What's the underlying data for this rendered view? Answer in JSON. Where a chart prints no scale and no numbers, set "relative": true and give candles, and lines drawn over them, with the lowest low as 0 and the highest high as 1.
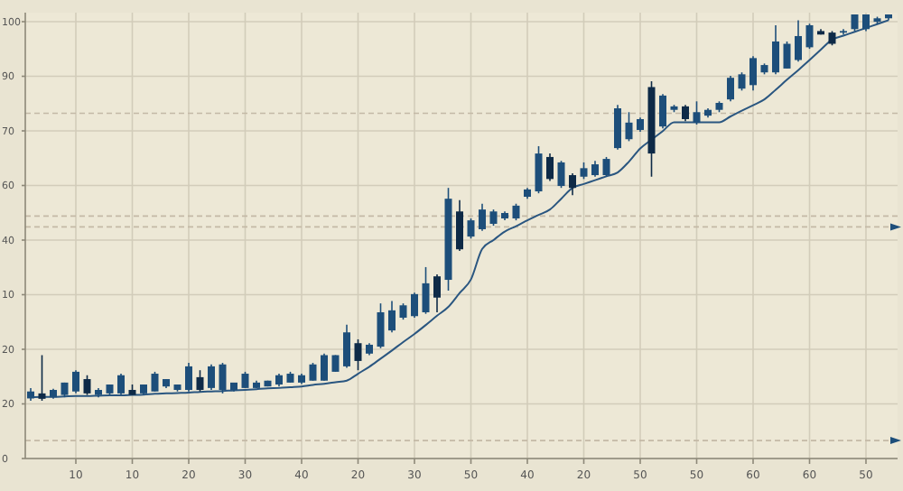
{
  "chart_data": {
    "type": "candlestick",
    "relative": true,
    "categories": [
      null,
      null,
      null,
      null,
      "10",
      null,
      null,
      null,
      null,
      "10",
      null,
      null,
      null,
      null,
      "20",
      null,
      null,
      null,
      null,
      "30",
      null,
      null,
      null,
      null,
      "40",
      null,
      null,
      null,
      null,
      "20",
      null,
      null,
      null,
      null,
      "30",
      null,
      null,
      null,
      null,
      "50",
      null,
      null,
      null,
      null,
      "40",
      null,
      null,
      null,
      null,
      "20",
      null,
      null,
      null,
      null,
      "50",
      null,
      null,
      null,
      null,
      "50",
      null,
      null,
      null,
      null,
      "60",
      null,
      null,
      null,
      null,
      "60",
      null,
      null,
      null,
      null,
      "50",
      null,
      null
    ],
    "ohlc": [
      [
        0.006,
        0.033,
        0,
        0.024
      ],
      [
        0.019,
        0.118,
        0,
        0.005
      ],
      [
        0.009,
        0.031,
        0.005,
        0.028
      ],
      [
        0.015,
        0.047,
        0.009,
        0.047
      ],
      [
        0.024,
        0.079,
        0.019,
        0.075
      ],
      [
        0.056,
        0.066,
        0.015,
        0.019
      ],
      [
        0.015,
        0.033,
        0.009,
        0.028
      ],
      [
        0.019,
        0.042,
        0.015,
        0.042
      ],
      [
        0.019,
        0.07,
        0.015,
        0.066
      ],
      [
        0.028,
        0.042,
        0.015,
        0.015
      ],
      [
        0.019,
        0.042,
        0.015,
        0.042
      ],
      [
        0.024,
        0.075,
        0.024,
        0.07
      ],
      [
        0.037,
        0.056,
        0.033,
        0.056
      ],
      [
        0.028,
        0.042,
        0.024,
        0.042
      ],
      [
        0.028,
        0.098,
        0.024,
        0.089
      ],
      [
        0.061,
        0.079,
        0.024,
        0.028
      ],
      [
        0.033,
        0.094,
        0.028,
        0.089
      ],
      [
        0.028,
        0.098,
        0.019,
        0.094
      ],
      [
        0.028,
        0.047,
        0.024,
        0.047
      ],
      [
        0.033,
        0.075,
        0.033,
        0.07
      ],
      [
        0.033,
        0.052,
        0.033,
        0.047
      ],
      [
        0.037,
        0.052,
        0.037,
        0.052
      ],
      [
        0.042,
        0.07,
        0.037,
        0.066
      ],
      [
        0.047,
        0.075,
        0.047,
        0.07
      ],
      [
        0.047,
        0.07,
        0.043,
        0.066
      ],
      [
        0.052,
        0.098,
        0.052,
        0.094
      ],
      [
        0.052,
        0.122,
        0.052,
        0.118
      ],
      [
        0.075,
        0.118,
        0.075,
        0.118
      ],
      [
        0.089,
        0.197,
        0.085,
        0.177
      ],
      [
        0.149,
        0.159,
        0.079,
        0.103
      ],
      [
        0.122,
        0.149,
        0.118,
        0.145
      ],
      [
        0.14,
        0.252,
        0.136,
        0.229
      ],
      [
        0.182,
        0.258,
        0.177,
        0.234
      ],
      [
        0.215,
        0.252,
        0.21,
        0.247
      ],
      [
        0.219,
        0.28,
        0.215,
        0.276
      ],
      [
        0.229,
        0.346,
        0.225,
        0.304
      ],
      [
        0.322,
        0.327,
        0.229,
        0.267
      ],
      [
        0.313,
        0.551,
        0.285,
        0.523
      ],
      [
        0.49,
        0.519,
        0.388,
        0.392
      ],
      [
        0.425,
        0.472,
        0.42,
        0.467
      ],
      [
        0.444,
        0.51,
        0.44,
        0.495
      ],
      [
        0.458,
        0.495,
        0.453,
        0.49
      ],
      [
        0.472,
        0.49,
        0.467,
        0.486
      ],
      [
        0.472,
        0.51,
        0.467,
        0.505
      ],
      [
        0.528,
        0.551,
        0.523,
        0.547
      ],
      [
        0.542,
        0.659,
        0.537,
        0.64
      ],
      [
        0.631,
        0.64,
        0.569,
        0.574
      ],
      [
        0.556,
        0.621,
        0.551,
        0.617
      ],
      [
        0.584,
        0.589,
        0.532,
        0.551
      ],
      [
        0.58,
        0.617,
        0.574,
        0.602
      ],
      [
        0.584,
        0.621,
        0.58,
        0.612
      ],
      [
        0.584,
        0.631,
        0.58,
        0.626
      ],
      [
        0.654,
        0.766,
        0.65,
        0.757
      ],
      [
        0.677,
        0.747,
        0.672,
        0.72
      ],
      [
        0.701,
        0.733,
        0.696,
        0.729
      ],
      [
        0.812,
        0.827,
        0.58,
        0.64
      ],
      [
        0.71,
        0.794,
        0.705,
        0.79
      ],
      [
        0.753,
        0.766,
        0.747,
        0.762
      ],
      [
        0.762,
        0.766,
        0.724,
        0.729
      ],
      [
        0.72,
        0.775,
        0.715,
        0.747
      ],
      [
        0.738,
        0.757,
        0.733,
        0.753
      ],
      [
        0.753,
        0.775,
        0.747,
        0.771
      ],
      [
        0.78,
        0.841,
        0.775,
        0.836
      ],
      [
        0.808,
        0.85,
        0.803,
        0.845
      ],
      [
        0.817,
        0.892,
        0.803,
        0.887
      ],
      [
        0.85,
        0.873,
        0.845,
        0.869
      ],
      [
        0.85,
        0.972,
        0.845,
        0.93
      ],
      [
        0.86,
        0.93,
        0.86,
        0.924
      ],
      [
        0.882,
        0.985,
        0.878,
        0.944
      ],
      [
        0.915,
        0.976,
        0.911,
        0.972
      ],
      [
        0.957,
        0.962,
        0.948,
        0.948
      ],
      [
        0.953,
        0.957,
        0.92,
        0.924
      ],
      [
        0.953,
        0.962,
        0.948,
        0.957
      ],
      [
        0.962,
        1,
        0.957,
        1
      ],
      [
        0.962,
        1,
        0.957,
        1
      ],
      [
        0.981,
        0.994,
        0.976,
        0.99
      ],
      [
        0.99,
        1,
        0.985,
        1
      ]
    ],
    "colors": [
      "#1d4e7a",
      "#0e2a47",
      "#1d4e7a",
      "#1d4e7a",
      "#1d4e7a",
      "#0e2a47",
      "#1d4e7a",
      "#1d4e7a",
      "#1d4e7a",
      "#0e2a47",
      "#1d4e7a",
      "#1d4e7a",
      "#1d4e7a",
      "#1d4e7a",
      "#1d4e7a",
      "#0e2a47",
      "#1d4e7a",
      "#1d4e7a",
      "#1d4e7a",
      "#1d4e7a",
      "#1d4e7a",
      "#1d4e7a",
      "#1d4e7a",
      "#1d4e7a",
      "#1d4e7a",
      "#1d4e7a",
      "#1d4e7a",
      "#1d4e7a",
      "#1d4e7a",
      "#0e2a47",
      "#1d4e7a",
      "#1d4e7a",
      "#1d4e7a",
      "#1d4e7a",
      "#1d4e7a",
      "#1d4e7a",
      "#0e2a47",
      "#1d4e7a",
      "#0e2a47",
      "#1d4e7a",
      "#1d4e7a",
      "#1d4e7a",
      "#1d4e7a",
      "#1d4e7a",
      "#1d4e7a",
      "#1d4e7a",
      "#0e2a47",
      "#1d4e7a",
      "#0e2a47",
      "#1d4e7a",
      "#1d4e7a",
      "#1d4e7a",
      "#1d4e7a",
      "#1d4e7a",
      "#1d4e7a",
      "#0e2a47",
      "#1d4e7a",
      "#1d4e7a",
      "#0e2a47",
      "#1d4e7a",
      "#1d4e7a",
      "#1d4e7a",
      "#1d4e7a",
      "#1d4e7a",
      "#1d4e7a",
      "#1d4e7a",
      "#1d4e7a",
      "#1d4e7a",
      "#1d4e7a",
      "#1d4e7a",
      "#0e2a47",
      "#0e2a47",
      "#1d4e7a",
      "#1d4e7a",
      "#1d4e7a",
      "#1d4e7a",
      "#1d4e7a"
    ],
    "series": [
      {
        "type": "line",
        "color": "#2a5680",
        "values": [
          0.009,
          0.01,
          0.01,
          0.011,
          0.012,
          0.012,
          0.013,
          0.014,
          0.014,
          0.015,
          0.016,
          0.018,
          0.019,
          0.02,
          0.021,
          0.023,
          0.024,
          0.025,
          0.027,
          0.028,
          0.03,
          0.032,
          0.033,
          0.035,
          0.037,
          0.041,
          0.044,
          0.048,
          0.052,
          0.07,
          0.088,
          0.109,
          0.13,
          0.152,
          0.173,
          0.196,
          0.22,
          0.243,
          0.279,
          0.314,
          0.393,
          0.416,
          0.438,
          0.452,
          0.467,
          0.481,
          0.495,
          0.523,
          0.551,
          0.561,
          0.571,
          0.581,
          0.591,
          0.619,
          0.653,
          0.676,
          0.698,
          0.721,
          0.721,
          0.721,
          0.721,
          0.721,
          0.736,
          0.751,
          0.765,
          0.78,
          0.805,
          0.831,
          0.856,
          0.882,
          0.909,
          0.935,
          0.945,
          0.955,
          0.965,
          0.975,
          0.985
        ]
      }
    ],
    "annotations": [
      "100",
      "90",
      "70",
      "60",
      "40",
      "10",
      "20",
      "20",
      "0"
    ],
    "ref_lines": [
      {
        "axis": "y",
        "value": 0.744,
        "color": "#c4b9a6",
        "line_style": "dashed"
      },
      {
        "axis": "y",
        "value": 0.478,
        "color": "#c4b9a6",
        "line_style": "dashed"
      },
      {
        "axis": "y",
        "value": 0.45,
        "color": "#c4b9a6",
        "line_style": "dashed"
      },
      {
        "axis": "y",
        "value": -0.103,
        "color": "#c4b9a6",
        "line_style": "dashed"
      }
    ],
    "grid": true
  }
}
